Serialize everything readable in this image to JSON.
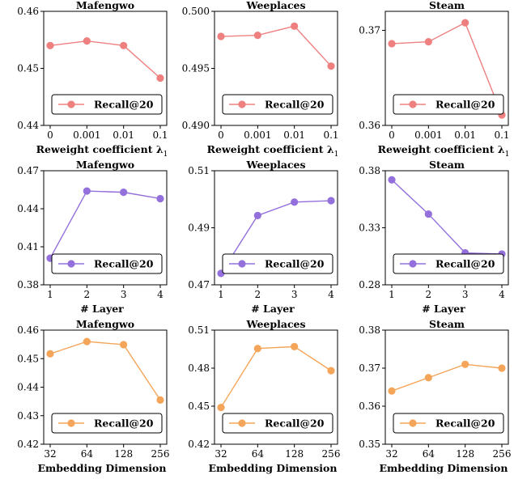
{
  "legend_label": "Recall@20",
  "chart_data": [
    {
      "type": "line",
      "title": "Mafengwo",
      "xlabel": "Reweight coefficient λ",
      "xlabel_sub": "1",
      "categories": [
        "0",
        "0.001",
        "0.01",
        "0.1"
      ],
      "yticks": [
        "0.44",
        "0.45",
        "0.46"
      ],
      "ylim": [
        0.44,
        0.46
      ],
      "series": [
        {
          "name": "Recall@20",
          "values": [
            0.454,
            0.4548,
            0.454,
            0.4483
          ]
        }
      ],
      "color": "#ee8080"
    },
    {
      "type": "line",
      "title": "Weeplaces",
      "xlabel": "Reweight coefficient λ",
      "xlabel_sub": "1",
      "categories": [
        "0",
        "0.001",
        "0.01",
        "0.1"
      ],
      "yticks": [
        "0.490",
        "0.495",
        "0.500"
      ],
      "ylim": [
        0.49,
        0.5
      ],
      "series": [
        {
          "name": "Recall@20",
          "values": [
            0.4978,
            0.4979,
            0.4987,
            0.4952
          ]
        }
      ],
      "color": "#ee8080"
    },
    {
      "type": "line",
      "title": "Steam",
      "xlabel": "Reweight coefficient λ",
      "xlabel_sub": "1",
      "categories": [
        "0",
        "0.001",
        "0.01",
        "0.1"
      ],
      "yticks": [
        "0.36",
        "0.37"
      ],
      "ylim": [
        0.36,
        0.372
      ],
      "series": [
        {
          "name": "Recall@20",
          "values": [
            0.3686,
            0.3688,
            0.3708,
            0.3611
          ]
        }
      ],
      "color": "#ee8080"
    },
    {
      "type": "line",
      "title": "Mafengwo",
      "xlabel": "# Layer",
      "xlabel_sub": "",
      "categories": [
        "1",
        "2",
        "3",
        "4"
      ],
      "yticks": [
        "0.38",
        "0.41",
        "0.44",
        "0.47"
      ],
      "ylim": [
        0.38,
        0.47
      ],
      "series": [
        {
          "name": "Recall@20",
          "values": [
            0.401,
            0.454,
            0.453,
            0.448
          ]
        }
      ],
      "color": "#9370db"
    },
    {
      "type": "line",
      "title": "Weeplaces",
      "xlabel": "# Layer",
      "xlabel_sub": "",
      "categories": [
        "1",
        "2",
        "3",
        "4"
      ],
      "yticks": [
        "0.47",
        "0.49",
        "0.51"
      ],
      "ylim": [
        0.47,
        0.51
      ],
      "series": [
        {
          "name": "Recall@20",
          "values": [
            0.474,
            0.4943,
            0.499,
            0.4995
          ]
        }
      ],
      "color": "#9370db"
    },
    {
      "type": "line",
      "title": "Steam",
      "xlabel": "# Layer",
      "xlabel_sub": "",
      "categories": [
        "1",
        "2",
        "3",
        "4"
      ],
      "yticks": [
        "0.28",
        "0.33",
        "0.38"
      ],
      "ylim": [
        0.28,
        0.38
      ],
      "series": [
        {
          "name": "Recall@20",
          "values": [
            0.372,
            0.342,
            0.308,
            0.307
          ]
        }
      ],
      "color": "#9370db"
    },
    {
      "type": "line",
      "title": "Mafengwo",
      "xlabel": "Embedding Dimension",
      "xlabel_sub": "",
      "categories": [
        "32",
        "64",
        "128",
        "256"
      ],
      "yticks": [
        "0.42",
        "0.43",
        "0.44",
        "0.45",
        "0.46"
      ],
      "ylim": [
        0.42,
        0.46
      ],
      "series": [
        {
          "name": "Recall@20",
          "values": [
            0.4517,
            0.456,
            0.4549,
            0.4355
          ]
        }
      ],
      "color": "#f5a55a"
    },
    {
      "type": "line",
      "title": "Weeplaces",
      "xlabel": "Embedding Dimension",
      "xlabel_sub": "",
      "categories": [
        "32",
        "64",
        "128",
        "256"
      ],
      "yticks": [
        "0.42",
        "0.45",
        "0.48",
        "0.51"
      ],
      "ylim": [
        0.42,
        0.51
      ],
      "series": [
        {
          "name": "Recall@20",
          "values": [
            0.449,
            0.4955,
            0.497,
            0.478
          ]
        }
      ],
      "color": "#f5a55a"
    },
    {
      "type": "line",
      "title": "Steam",
      "xlabel": "Embedding Dimension",
      "xlabel_sub": "",
      "categories": [
        "32",
        "64",
        "128",
        "256"
      ],
      "yticks": [
        "0.35",
        "0.36",
        "0.37",
        "0.38"
      ],
      "ylim": [
        0.35,
        0.38
      ],
      "series": [
        {
          "name": "Recall@20",
          "values": [
            0.364,
            0.3675,
            0.371,
            0.37
          ]
        }
      ],
      "color": "#f5a55a"
    }
  ]
}
